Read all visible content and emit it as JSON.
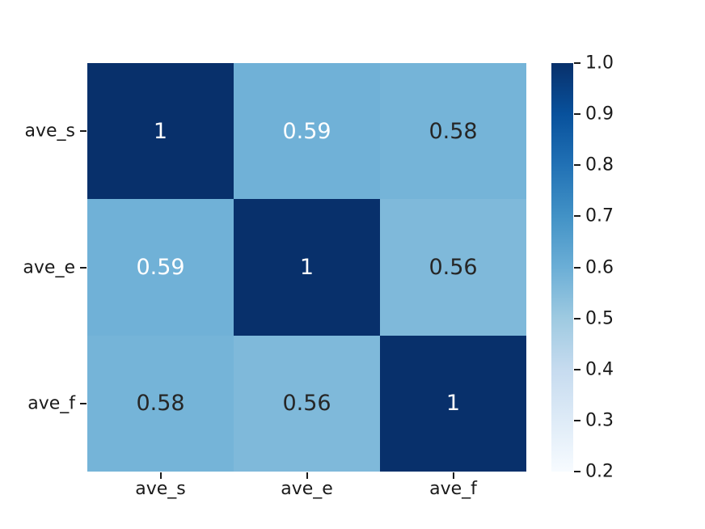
{
  "chart_data": {
    "type": "heatmap",
    "title": "",
    "xlabel": "",
    "ylabel": "",
    "x_labels": [
      "ave_s",
      "ave_e",
      "ave_f"
    ],
    "y_labels": [
      "ave_s",
      "ave_e",
      "ave_f"
    ],
    "matrix": [
      [
        1.0,
        0.59,
        0.58
      ],
      [
        0.59,
        1.0,
        0.56
      ],
      [
        0.58,
        0.56,
        1.0
      ]
    ],
    "cell_text": [
      [
        "1",
        "0.59",
        "0.58"
      ],
      [
        "0.59",
        "1",
        "0.56"
      ],
      [
        "0.58",
        "0.56",
        "1"
      ]
    ],
    "cell_colors": [
      [
        "#08306b",
        "#70b1d7",
        "#75b4d8"
      ],
      [
        "#70b1d7",
        "#08306b",
        "#7fb9da"
      ],
      [
        "#75b4d8",
        "#7fb9da",
        "#08306b"
      ]
    ],
    "cell_text_colors": [
      [
        "#ffffff",
        "#ffffff",
        "#262626"
      ],
      [
        "#ffffff",
        "#ffffff",
        "#262626"
      ],
      [
        "#262626",
        "#262626",
        "#ffffff"
      ]
    ],
    "colormap": "Blues",
    "vmin": 0.2,
    "vmax": 1.0,
    "grid": false,
    "legend_position": "colorbar-right",
    "colorbar": {
      "tick_labels": [
        "1.0",
        "0.9",
        "0.8",
        "0.7",
        "0.6",
        "0.5",
        "0.4",
        "0.3",
        "0.2"
      ],
      "gradient_stops_top_to_bottom": [
        "#08306b",
        "#08519c",
        "#2171b5",
        "#4292c6",
        "#6baed6",
        "#9ecae1",
        "#c6dbef",
        "#deebf7",
        "#f7fbff"
      ]
    },
    "background_color": "#ffffff"
  }
}
